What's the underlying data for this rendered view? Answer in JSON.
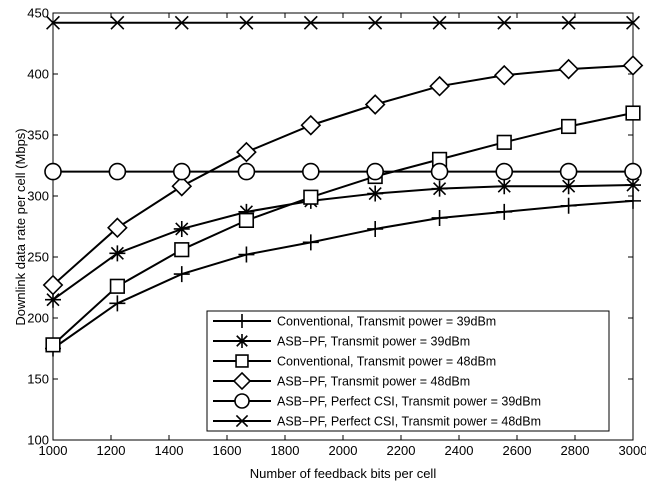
{
  "chart_data": {
    "type": "line",
    "title": "",
    "xlabel": "Number of feedback bits per cell",
    "ylabel": "Downlink data rate per cell (Mbps)",
    "xlim": [
      1000,
      3000
    ],
    "ylim": [
      100,
      450
    ],
    "xticks": [
      1000,
      1200,
      1400,
      1600,
      1800,
      2000,
      2200,
      2400,
      2600,
      2800,
      3000
    ],
    "yticks": [
      100,
      150,
      200,
      250,
      300,
      350,
      400,
      450
    ],
    "grid": false,
    "legend_position": "bottom-right",
    "x": [
      1000,
      1222,
      1444,
      1667,
      1889,
      2111,
      2333,
      2556,
      2778,
      3000
    ],
    "series": [
      {
        "name": "Conventional, Transmit power = 39dBm",
        "marker": "plus",
        "values": [
          175,
          212,
          236,
          252,
          262,
          273,
          282,
          287,
          292,
          296
        ]
      },
      {
        "name": "ASB−PF, Transmit power = 39dBm",
        "marker": "asterisk",
        "values": [
          215,
          253,
          273,
          287,
          296,
          302,
          306,
          308,
          308,
          309
        ]
      },
      {
        "name": "Conventional, Transmit power = 48dBm",
        "marker": "square",
        "values": [
          178,
          226,
          256,
          280,
          299,
          316,
          330,
          344,
          357,
          368
        ]
      },
      {
        "name": "ASB−PF, Transmit power = 48dBm",
        "marker": "diamond",
        "values": [
          227,
          274,
          308,
          336,
          358,
          375,
          390,
          399,
          404,
          407
        ]
      },
      {
        "name": "ASB−PF, Perfect CSI, Transmit power = 39dBm",
        "marker": "circle",
        "values": [
          320,
          320,
          320,
          320,
          320,
          320,
          320,
          320,
          320,
          320
        ]
      },
      {
        "name": "ASB−PF, Perfect CSI, Transmit power = 48dBm",
        "marker": "x",
        "values": [
          442,
          442,
          442,
          442,
          442,
          442,
          442,
          442,
          442,
          442
        ]
      }
    ]
  }
}
